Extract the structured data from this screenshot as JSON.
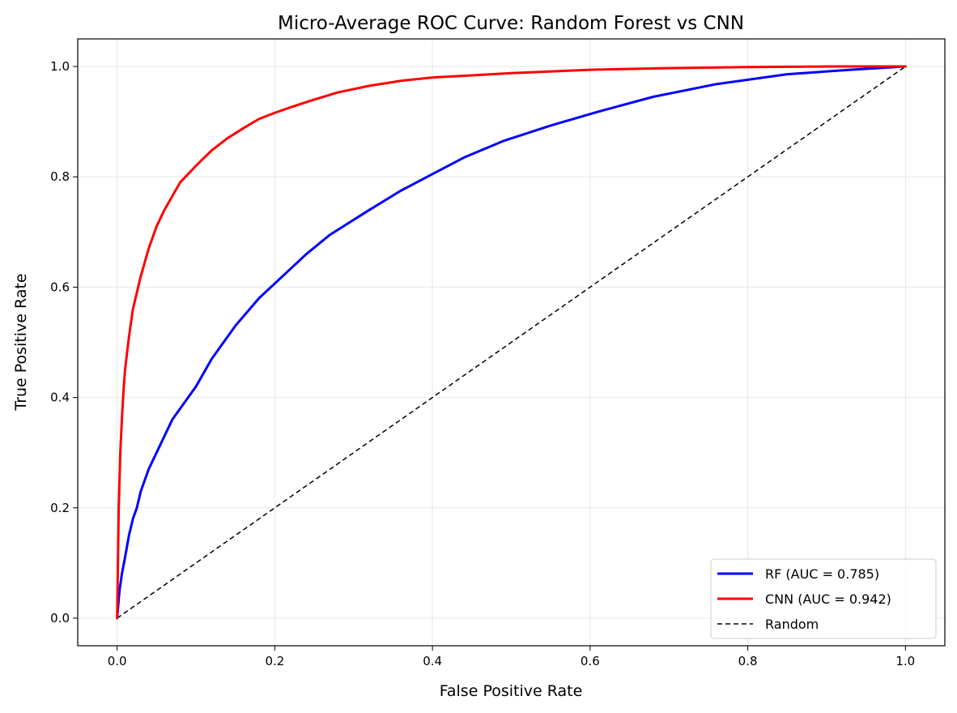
{
  "chart_data": {
    "type": "line",
    "title": "Micro-Average ROC Curve: Random Forest vs CNN",
    "xlabel": "False Positive Rate",
    "ylabel": "True Positive Rate",
    "xlim": [
      -0.05,
      1.05
    ],
    "ylim": [
      -0.05,
      1.05
    ],
    "xticks": [
      "0.0",
      "0.2",
      "0.4",
      "0.6",
      "0.8",
      "1.0"
    ],
    "yticks": [
      "0.0",
      "0.2",
      "0.4",
      "0.6",
      "0.8",
      "1.0"
    ],
    "grid": true,
    "legend_position": "lower-right",
    "series": [
      {
        "name": "RF (AUC = 0.785)",
        "color": "#0000ff",
        "style": "solid",
        "x": [
          0,
          0.003,
          0.006,
          0.01,
          0.015,
          0.02,
          0.025,
          0.03,
          0.04,
          0.05,
          0.06,
          0.07,
          0.08,
          0.1,
          0.12,
          0.15,
          0.18,
          0.21,
          0.24,
          0.27,
          0.32,
          0.36,
          0.4,
          0.44,
          0.49,
          0.55,
          0.61,
          0.68,
          0.76,
          0.85,
          0.93,
          1.0
        ],
        "y": [
          0,
          0.05,
          0.08,
          0.11,
          0.15,
          0.18,
          0.2,
          0.23,
          0.27,
          0.3,
          0.33,
          0.36,
          0.38,
          0.42,
          0.47,
          0.53,
          0.58,
          0.62,
          0.66,
          0.695,
          0.74,
          0.775,
          0.805,
          0.835,
          0.865,
          0.893,
          0.918,
          0.945,
          0.968,
          0.986,
          0.994,
          1.0
        ]
      },
      {
        "name": "CNN (AUC = 0.942)",
        "color": "#ff0000",
        "style": "solid",
        "x": [
          0,
          0.002,
          0.004,
          0.006,
          0.008,
          0.01,
          0.015,
          0.02,
          0.025,
          0.03,
          0.04,
          0.05,
          0.06,
          0.07,
          0.08,
          0.1,
          0.12,
          0.14,
          0.16,
          0.18,
          0.2,
          0.22,
          0.25,
          0.28,
          0.32,
          0.36,
          0.4,
          0.45,
          0.5,
          0.6,
          0.7,
          0.8,
          0.9,
          1.0
        ],
        "y": [
          0,
          0.2,
          0.3,
          0.36,
          0.41,
          0.45,
          0.51,
          0.56,
          0.59,
          0.62,
          0.67,
          0.71,
          0.74,
          0.765,
          0.79,
          0.82,
          0.848,
          0.87,
          0.888,
          0.905,
          0.916,
          0.926,
          0.94,
          0.953,
          0.965,
          0.974,
          0.98,
          0.984,
          0.988,
          0.994,
          0.997,
          0.999,
          1.0,
          1.0
        ]
      },
      {
        "name": "Random",
        "color": "#000000",
        "style": "dashed",
        "x": [
          0,
          1
        ],
        "y": [
          0,
          1
        ]
      }
    ]
  }
}
